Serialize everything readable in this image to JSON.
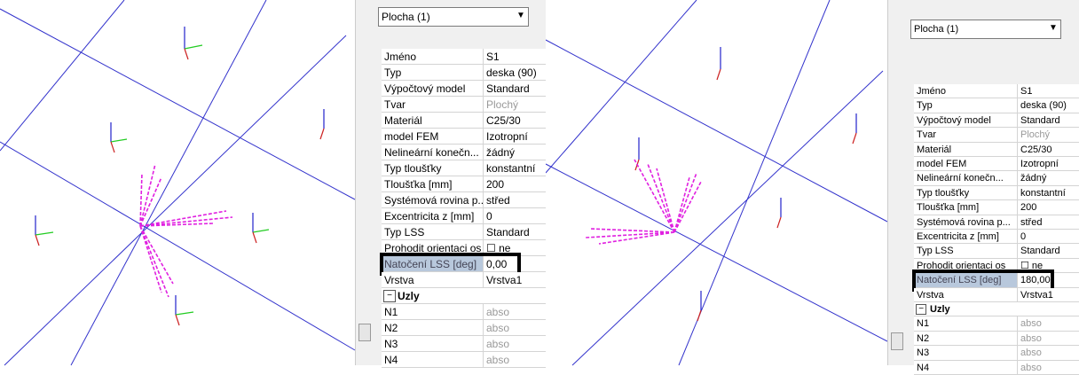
{
  "panels": [
    {
      "dropdown": "Plocha (1)",
      "rows": [
        [
          "Jméno",
          "S1"
        ],
        [
          "Typ",
          "deska (90)"
        ],
        [
          "Výpočtový model",
          "Standard"
        ],
        [
          "Tvar",
          "Plochý"
        ],
        [
          "Materiál",
          "C25/30"
        ],
        [
          "model FEM",
          "Izotropní"
        ],
        [
          "Nelineární konečn...",
          "žádný"
        ],
        [
          "Typ tloušťky",
          "konstantní"
        ],
        [
          "Tloušťka [mm]",
          "200"
        ],
        [
          "Systémová rovina p...",
          "střed"
        ],
        [
          "Excentricita z [mm]",
          "0"
        ],
        [
          "Typ LSS",
          "Standard"
        ],
        [
          "Prohodit orientaci os",
          "ne"
        ],
        [
          "Natočení LSS [deg]",
          "0,00"
        ],
        [
          "Vrstva",
          "Vrstva1"
        ]
      ],
      "section": "Uzly",
      "nodes": [
        [
          "N1",
          "abso"
        ],
        [
          "N2",
          "abso"
        ],
        [
          "N3",
          "abso"
        ],
        [
          "N4",
          "abso"
        ]
      ]
    },
    {
      "dropdown": "Plocha (1)",
      "rows": [
        [
          "Jméno",
          "S1"
        ],
        [
          "Typ",
          "deska (90)"
        ],
        [
          "Výpočtový model",
          "Standard"
        ],
        [
          "Tvar",
          "Plochý"
        ],
        [
          "Materiál",
          "C25/30"
        ],
        [
          "model FEM",
          "Izotropní"
        ],
        [
          "Nelineární konečn...",
          "žádný"
        ],
        [
          "Typ tloušťky",
          "konstantní"
        ],
        [
          "Tloušťka [mm]",
          "200"
        ],
        [
          "Systémová rovina p...",
          "střed"
        ],
        [
          "Excentricita z [mm]",
          "0"
        ],
        [
          "Typ LSS",
          "Standard"
        ],
        [
          "Prohodit orientaci os",
          "ne"
        ],
        [
          "Natočení LSS [deg]",
          "180,00"
        ],
        [
          "Vrstva",
          "Vrstva1"
        ]
      ],
      "section": "Uzly",
      "nodes": [
        [
          "N1",
          "abso"
        ],
        [
          "N2",
          "abso"
        ],
        [
          "N3",
          "abso"
        ],
        [
          "N4",
          "abso"
        ]
      ]
    }
  ]
}
